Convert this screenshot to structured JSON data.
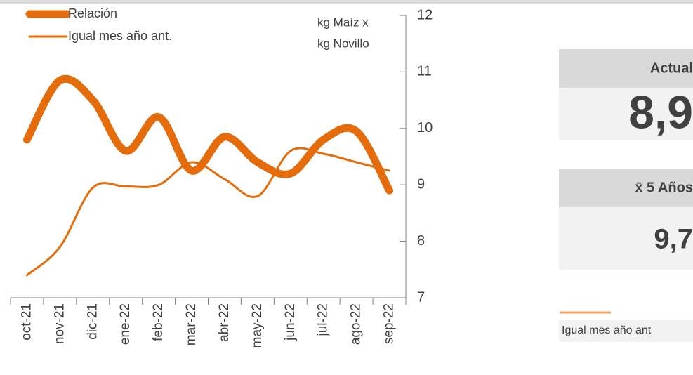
{
  "chart_data": {
    "type": "line",
    "y_label": [
      "kg Maíz x",
      "kg Novillo"
    ],
    "categories": [
      "oct-21",
      "nov-21",
      "dic-21",
      "ene-22",
      "feb-22",
      "mar-22",
      "abr-22",
      "may-22",
      "jun-22",
      "jul-22",
      "ago-22",
      "sep-22"
    ],
    "series": [
      {
        "name": "Relación",
        "color": "#e46c0a",
        "width": 11,
        "values": [
          9.8,
          10.85,
          10.5,
          9.6,
          10.2,
          9.25,
          9.85,
          9.4,
          9.2,
          9.8,
          9.95,
          8.9
        ]
      },
      {
        "name": "Igual mes año ant.",
        "color": "#e46c0a",
        "width": 3,
        "values": [
          7.4,
          7.9,
          8.95,
          8.97,
          9.0,
          9.4,
          9.1,
          8.8,
          9.6,
          9.55,
          9.4,
          9.25
        ]
      }
    ],
    "ylim": [
      7,
      12
    ],
    "yticks": [
      7,
      8,
      9,
      10,
      11,
      12
    ],
    "grid": false
  },
  "panels": [
    {
      "header": "Actual",
      "value": "8,9",
      "color": "#e46c0a"
    },
    {
      "header": "x̄ 5 Años",
      "value": "9,7",
      "color": "#404040"
    }
  ],
  "side_legend": {
    "label": "Igual mes año ant",
    "color": "#f4a460"
  }
}
